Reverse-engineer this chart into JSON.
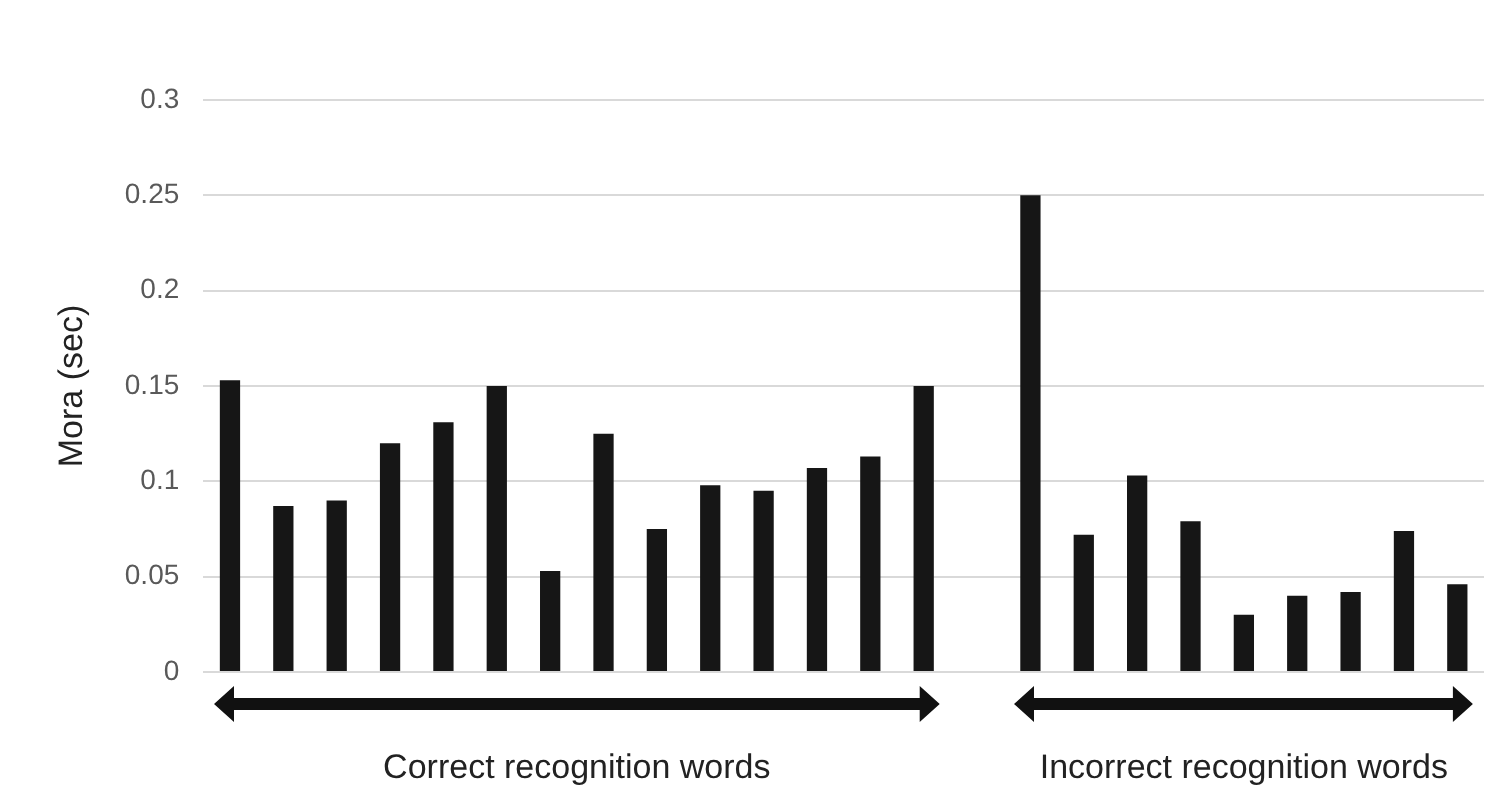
{
  "chart_data": {
    "type": "bar",
    "ylabel": "Mora (sec)",
    "categories": [
      null,
      null,
      null,
      null,
      null,
      null,
      null,
      null,
      null,
      null,
      null,
      null,
      null,
      null,
      null,
      null,
      null,
      null,
      null,
      null,
      null,
      null,
      null,
      null
    ],
    "values": [
      0.153,
      0.087,
      0.09,
      0.12,
      0.131,
      0.15,
      0.053,
      0.125,
      0.075,
      0.098,
      0.095,
      0.107,
      0.113,
      0.15,
      null,
      0.25,
      0.072,
      0.103,
      0.079,
      0.03,
      0.04,
      0.042,
      0.074,
      0.046
    ],
    "color": "#161616",
    "ylim": [
      0,
      0.3
    ],
    "yticks": [
      0,
      0.05,
      0.1,
      0.15,
      0.2,
      0.25,
      0.3
    ],
    "grid": "y",
    "legend": false,
    "annotations": [
      "Correct recognition words",
      "Incorrect recognition words"
    ]
  }
}
